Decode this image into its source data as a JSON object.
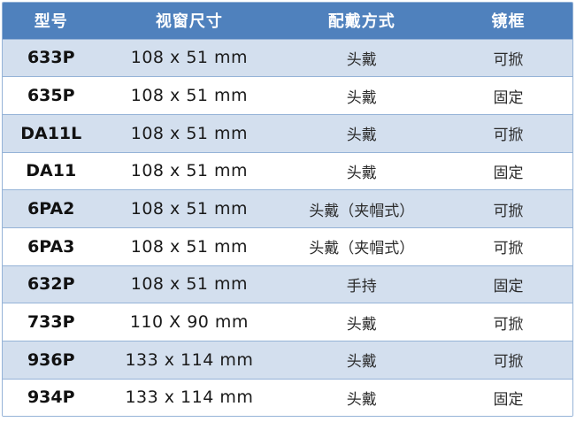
{
  "table": {
    "columns": [
      {
        "key": "model",
        "label": "型号"
      },
      {
        "key": "window_size",
        "label": "视窗尺寸"
      },
      {
        "key": "wearing_method",
        "label": "配戴方式"
      },
      {
        "key": "frame",
        "label": "镜框"
      }
    ],
    "rows": [
      {
        "model": "633P",
        "window_size": "108 x 51 mm",
        "wearing_method": "头戴",
        "frame": "可掀"
      },
      {
        "model": "635P",
        "window_size": "108 x 51 mm",
        "wearing_method": "头戴",
        "frame": "固定"
      },
      {
        "model": "DA11L",
        "window_size": "108 x 51 mm",
        "wearing_method": "头戴",
        "frame": "可掀"
      },
      {
        "model": "DA11",
        "window_size": "108 x 51 mm",
        "wearing_method": "头戴",
        "frame": "固定"
      },
      {
        "model": "6PA2",
        "window_size": "108 x 51 mm",
        "wearing_method": "头戴（夹帽式）",
        "frame": "可掀"
      },
      {
        "model": "6PA3",
        "window_size": "108 x 51 mm",
        "wearing_method": "头戴（夹帽式）",
        "frame": "可掀"
      },
      {
        "model": "632P",
        "window_size": "108 x 51 mm",
        "wearing_method": "手持",
        "frame": "固定"
      },
      {
        "model": "733P",
        "window_size": "110 X 90 mm",
        "wearing_method": "头戴",
        "frame": "可掀"
      },
      {
        "model": "936P",
        "window_size": "133 x 114 mm",
        "wearing_method": "头戴",
        "frame": "可掀"
      },
      {
        "model": "934P",
        "window_size": "133 x 114 mm",
        "wearing_method": "头戴",
        "frame": "固定"
      }
    ],
    "colors": {
      "header_bg": "#4F81BD",
      "header_text": "#FFFFFF",
      "band_row_bg": "#D3DFEE",
      "plain_row_bg": "#FFFFFF",
      "border": "#95B3D7",
      "text": "#1A1A1A"
    }
  }
}
